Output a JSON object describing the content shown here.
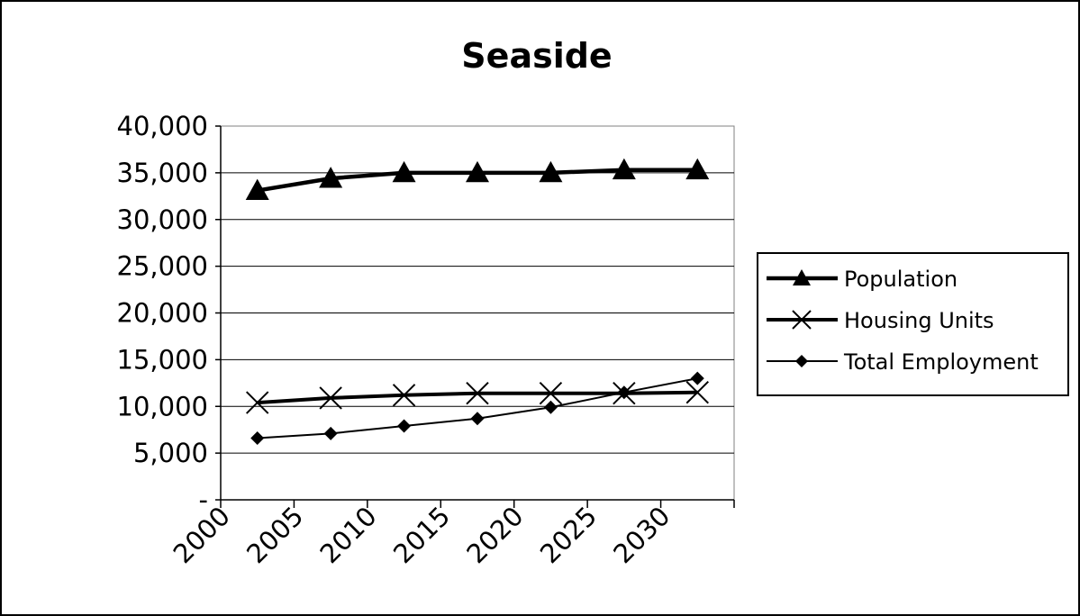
{
  "chart_data": {
    "type": "line",
    "title": "Seaside",
    "xlabel": "",
    "ylabel": "",
    "x": [
      "2000",
      "2005",
      "2010",
      "2015",
      "2020",
      "2025",
      "2030"
    ],
    "yticks": [
      {
        "value": 0,
        "label": "-"
      },
      {
        "value": 5000,
        "label": "5,000"
      },
      {
        "value": 10000,
        "label": "10,000"
      },
      {
        "value": 15000,
        "label": "15,000"
      },
      {
        "value": 20000,
        "label": "20,000"
      },
      {
        "value": 25000,
        "label": "25,000"
      },
      {
        "value": 30000,
        "label": "30,000"
      },
      {
        "value": 35000,
        "label": "35,000"
      },
      {
        "value": 40000,
        "label": "40,000"
      }
    ],
    "ylim": [
      0,
      40000
    ],
    "grid": true,
    "legend": "right",
    "series": [
      {
        "name": "Population",
        "values": [
          33100,
          34400,
          35000,
          35000,
          35000,
          35300,
          35300
        ],
        "marker": "triangle",
        "color": "#000000"
      },
      {
        "name": "Housing Units",
        "values": [
          10400,
          10900,
          11200,
          11400,
          11400,
          11400,
          11500
        ],
        "marker": "x",
        "color": "#000000"
      },
      {
        "name": "Total Employment",
        "values": [
          6600,
          7100,
          7900,
          8700,
          9900,
          11500,
          13000
        ],
        "marker": "diamond",
        "color": "#000000"
      }
    ]
  }
}
